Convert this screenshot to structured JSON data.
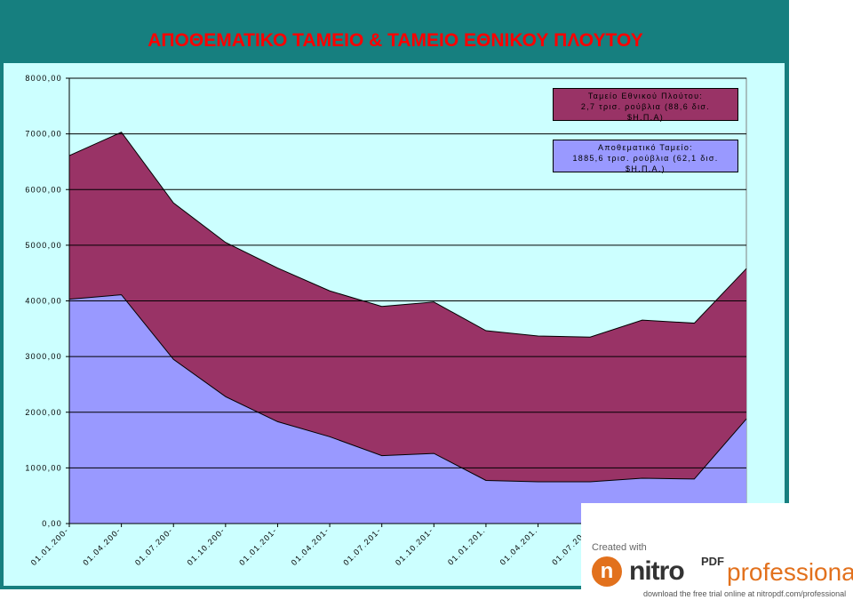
{
  "title": "ΑΠΟΘΕΜΑΤΙΚΟ ΤΑΜΕΙΟ & ΤΑΜΕΙΟ ΕΘΝΙΚΟΥ ΠΛΟΥΤΟΥ",
  "colors": {
    "frame": "#167f7f",
    "background": "#ccffff",
    "title": "#ff0000",
    "wealth_fund": "#993366",
    "reserve_fund": "#9999ff"
  },
  "legend": [
    {
      "lines": [
        "Ταμείο Εθνικού Πλούτου:",
        "2,7 τρισ. ρούβλια (88,6 δισ.",
        "$Η.Π.Α)"
      ]
    },
    {
      "lines": [
        "Αποθεματικό Ταμείο:",
        "1885,6 τρισ. ρούβλια (62,1 δισ.",
        "$Η.Π.Α.)"
      ]
    }
  ],
  "chart_data": {
    "type": "area",
    "stacked": true,
    "title": "ΑΠΟΘΕΜΑΤΙΚΟ ΤΑΜΕΙΟ & ΤΑΜΕΙΟ ΕΘΝΙΚΟΥ ΠΛΟΥΤΟΥ",
    "ylim": [
      0,
      8000
    ],
    "yticks": [
      "0,00",
      "1000,00",
      "2000,00",
      "3000,00",
      "4000,00",
      "5000,00",
      "6000,00",
      "7000,00",
      "8000,00"
    ],
    "ytick_values": [
      0,
      1000,
      2000,
      3000,
      4000,
      5000,
      6000,
      7000,
      8000
    ],
    "xtick_labels": [
      "01.01.200-",
      "01.04.200-",
      "01.07.200-",
      "01.10.200-",
      "01.01.201-",
      "01.04.201-",
      "01.07.201-",
      "01.10.201-",
      "01.01.201.",
      "01.04.201.",
      "01.07.201."
    ],
    "grid": "horizontal",
    "series": [
      {
        "name": "Αποθεματικό Ταμείο",
        "values": [
          4030,
          4110,
          2950,
          2280,
          1830,
          1560,
          1220,
          1260,
          775,
          750,
          750,
          815,
          800,
          1880
        ]
      },
      {
        "name": "Ταμείο Εθνικού Πλούτου",
        "values": [
          2580,
          2920,
          2810,
          2770,
          2760,
          2620,
          2680,
          2720,
          2690,
          2620,
          2600,
          2840,
          2800,
          2700
        ]
      }
    ]
  },
  "watermark": {
    "created": "Created with",
    "logo_letter": "n",
    "brand": "nitro",
    "pdf": "PDF",
    "product": "professional",
    "download": "download the free trial online at nitropdf.com/professional"
  }
}
